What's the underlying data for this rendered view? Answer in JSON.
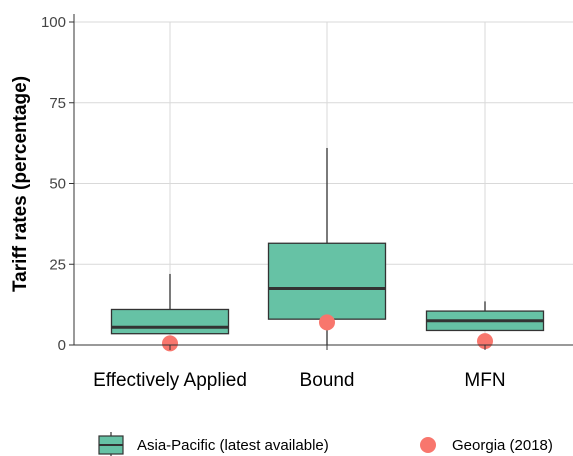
{
  "chart_data": {
    "type": "boxplot",
    "ylabel": "Tariff rates (percentage)",
    "ylim": [
      0,
      100
    ],
    "yticks": [
      0,
      25,
      50,
      75,
      100
    ],
    "categories": [
      "Effectively Applied",
      "Bound",
      "MFN"
    ],
    "series": [
      {
        "name": "Asia-Pacific (latest available)",
        "kind": "box",
        "color": "#66c2a5",
        "boxes": [
          {
            "category": "Effectively Applied",
            "min": 3.5,
            "q1": 3.5,
            "median": 5.5,
            "q3": 11,
            "max": 22
          },
          {
            "category": "Bound",
            "min": 0,
            "q1": 8,
            "median": 17.5,
            "q3": 31.5,
            "max": 61
          },
          {
            "category": "MFN",
            "min": 4.5,
            "q1": 4.5,
            "median": 7.5,
            "q3": 10.5,
            "max": 13.5
          }
        ]
      },
      {
        "name": "Georgia (2018)",
        "kind": "point",
        "color": "#f8766d",
        "values": [
          0.5,
          7,
          1.2
        ]
      }
    ],
    "grid": true,
    "legend_position": "bottom"
  }
}
